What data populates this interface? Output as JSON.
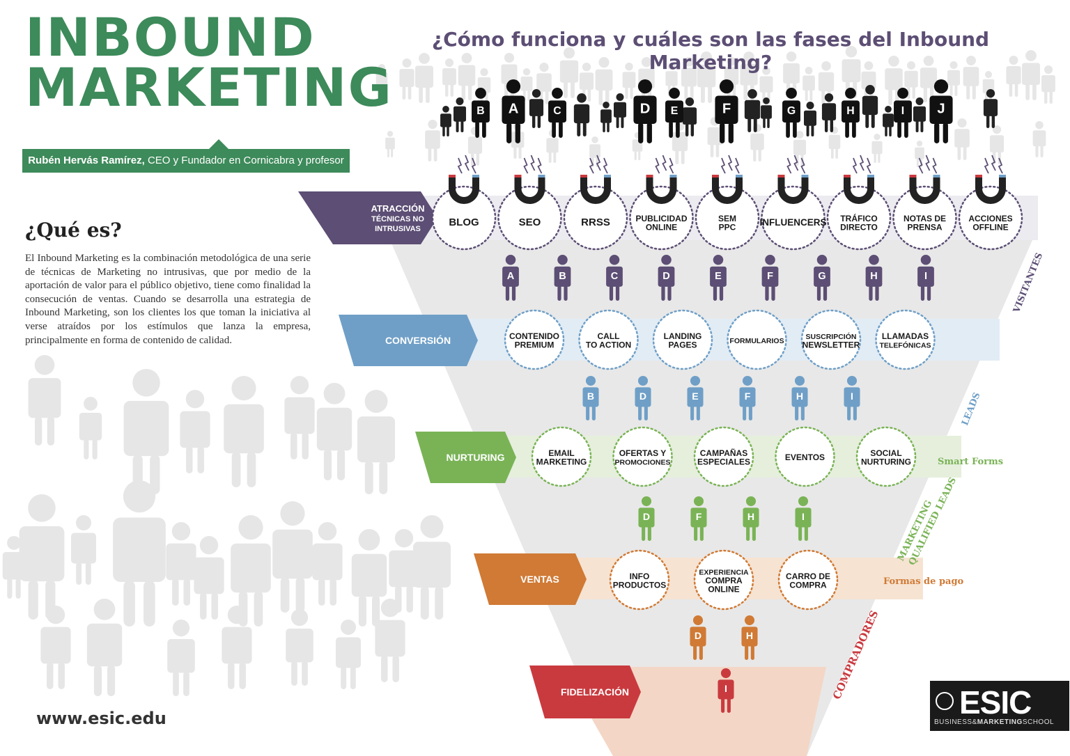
{
  "header": {
    "title_line1": "INBOUND",
    "title_line2": "MARKETING",
    "subtitle": "¿Cómo funciona y cuáles son las fases del Inbound Marketing?",
    "author_name": "Rubén Hervás Ramírez,",
    "author_role": " CEO y Fundador en Cornicabra y profesor de ESIC."
  },
  "what_is": {
    "title": "¿Qué es?",
    "text": "El Inbound Marketing es la combinación metodológica de una serie de técnicas de Marketing no intrusivas, que por medio de la aportación de valor para el público objetivo, tiene como finalidad la consecución de ventas. Cuando se desarrolla una estrategia de Inbound Marketing, son los clientes los que toman la iniciativa al verse atraídos por los estímulos que lanza la empresa, principalmente en forma de contenido de calidad."
  },
  "footer": {
    "url": "www.esic.edu"
  },
  "logo": {
    "name": "ESIC",
    "sub_a": "BUSINESS&",
    "sub_b": "MARKETING",
    "sub_c": "SCHOOL"
  },
  "crowd_letters": [
    "B",
    "A",
    "C",
    "D",
    "E",
    "F",
    "G",
    "H",
    "I",
    "J"
  ],
  "stages": [
    {
      "id": "atraccion",
      "label": [
        "ATRACCIÓN",
        "TÉCNICAS NO",
        "INTRUSIVAS"
      ],
      "color": "#5c4e74",
      "light": "#ecebf0",
      "items": [
        [
          "BLOG"
        ],
        [
          "SEO"
        ],
        [
          "RRSS"
        ],
        [
          "PUBLICIDAD",
          "ONLINE"
        ],
        [
          "SEM",
          "PPC"
        ],
        [
          "INFLUENCERS"
        ],
        [
          "TRÁFICO",
          "DIRECTO"
        ],
        [
          "NOTAS DE",
          "PRENSA"
        ],
        [
          "ACCIONES",
          "OFFLINE"
        ]
      ],
      "people": [
        "A",
        "B",
        "C",
        "D",
        "E",
        "F",
        "G",
        "H",
        "I"
      ]
    },
    {
      "id": "conversion",
      "label": [
        "CONVERSIÓN"
      ],
      "color": "#6f9fc7",
      "light": "#e1ecf5",
      "items": [
        [
          "CONTENIDO",
          "PREMIUM"
        ],
        [
          "CALL",
          "TO ACTION"
        ],
        [
          "LANDING",
          "PAGES"
        ],
        [
          "FORMULARIOS"
        ],
        [
          "SUSCRIPCIÓN",
          "NEWSLETTER"
        ],
        [
          "LLAMADAS",
          "TELEFÓNICAS"
        ]
      ],
      "people": [
        "B",
        "D",
        "E",
        "F",
        "H",
        "I"
      ]
    },
    {
      "id": "nurturing",
      "label": [
        "NURTURING"
      ],
      "color": "#7ab356",
      "light": "#e5efdc",
      "items": [
        [
          "EMAIL",
          "MARKETING"
        ],
        [
          "OFERTAS Y",
          "PROMOCIONES"
        ],
        [
          "CAMPAÑAS",
          "ESPECIALES"
        ],
        [
          "EVENTOS"
        ],
        [
          "SOCIAL",
          "NURTURING"
        ]
      ],
      "people": [
        "D",
        "F",
        "H",
        "I"
      ]
    },
    {
      "id": "ventas",
      "label": [
        "VENTAS"
      ],
      "color": "#d07a35",
      "light": "#f6e3d2",
      "items": [
        [
          "INFO",
          "PRODUCTOS"
        ],
        [
          "EXPERIENCIA",
          "COMPRA",
          "ONLINE"
        ],
        [
          "CARRO DE",
          "COMPRA"
        ]
      ],
      "people": [
        "D",
        "H"
      ]
    },
    {
      "id": "fidelizacion",
      "label": [
        "FIDELIZACIÓN"
      ],
      "color": "#c93a3f",
      "light": "#f3d6c5",
      "items": [],
      "people": [
        "I"
      ]
    }
  ],
  "side_labels": {
    "visitantes": "VISITANTES",
    "leads": "LEADS",
    "smart_forms": "Smart Forms",
    "mql_1": "MARKETING",
    "mql_2": "QUALIFIED LEADS",
    "formas_pago": "Formas de pago",
    "compradores": "COMPRADORES"
  },
  "colors": {
    "green": "#3d8a5a",
    "purple": "#5c4e74",
    "blue": "#6f9fc7",
    "lightgreen": "#7ab356",
    "orange": "#d07a35",
    "red": "#c93a3f",
    "crowd": "#e6e6e6",
    "funnel": "#e8e8e8"
  }
}
